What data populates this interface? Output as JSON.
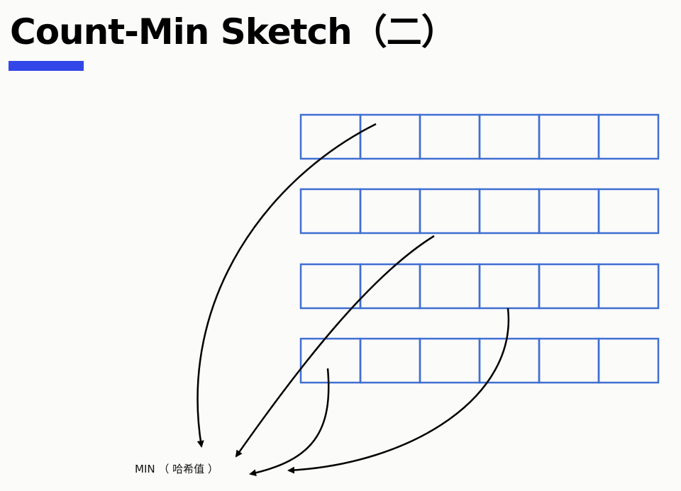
{
  "slide": {
    "title": "Count-Min Sketch（二）"
  },
  "diagram": {
    "grid": {
      "rows": 4,
      "columns": 6,
      "cell_border_color": "#3f6fd2"
    },
    "arrow_color": "#000000",
    "result_label": "MIN （ 哈希值 ）"
  },
  "colors": {
    "title_accent": "#3347e8",
    "background": "#fbfbfa"
  }
}
